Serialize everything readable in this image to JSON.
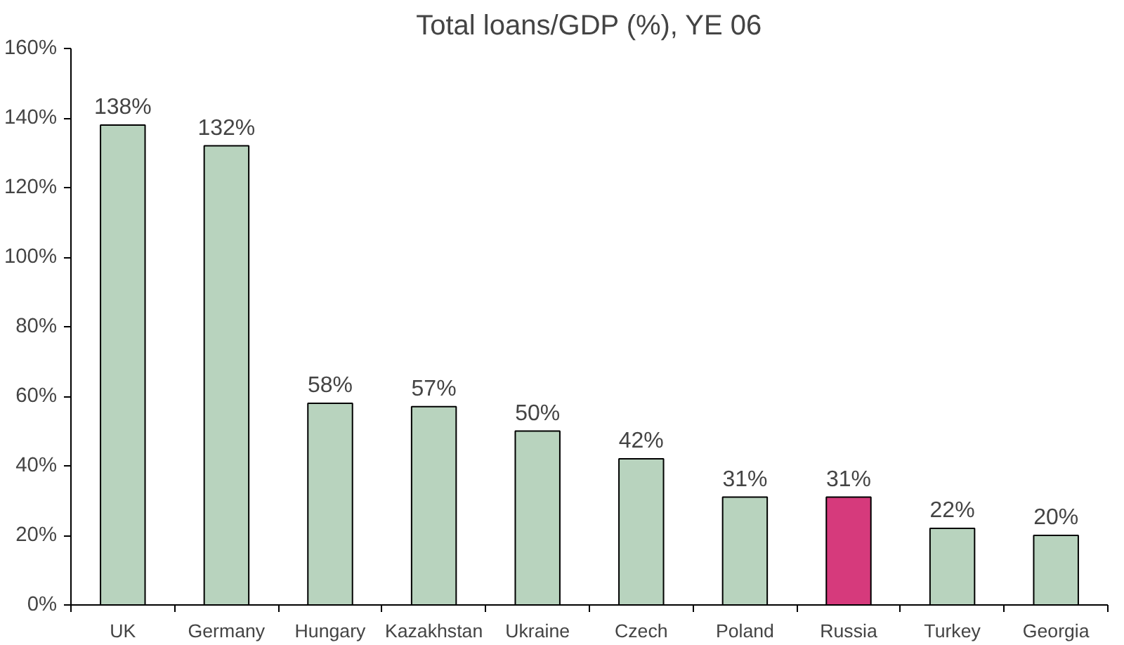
{
  "chart_data": {
    "type": "bar",
    "title": "Total loans/GDP (%), YE 06",
    "categories": [
      "UK",
      "Germany",
      "Hungary",
      "Kazakhstan",
      "Ukraine",
      "Czech",
      "Poland",
      "Russia",
      "Turkey",
      "Georgia"
    ],
    "values": [
      138,
      132,
      58,
      57,
      50,
      42,
      31,
      31,
      22,
      20
    ],
    "colors": [
      "#b8d3be",
      "#b8d3be",
      "#b8d3be",
      "#b8d3be",
      "#b8d3be",
      "#b8d3be",
      "#b8d3be",
      "#d63a7c",
      "#b8d3be",
      "#b8d3be"
    ],
    "value_labels": [
      "138%",
      "132%",
      "58%",
      "57%",
      "50%",
      "42%",
      "31%",
      "31%",
      "22%",
      "20%"
    ],
    "ylim": [
      0,
      160
    ],
    "yticks": [
      {
        "value": 0,
        "label": "0%"
      },
      {
        "value": 20,
        "label": "20%"
      },
      {
        "value": 40,
        "label": "40%"
      },
      {
        "value": 60,
        "label": "60%"
      },
      {
        "value": 80,
        "label": "80%"
      },
      {
        "value": 100,
        "label": "100%"
      },
      {
        "value": 120,
        "label": "120%"
      },
      {
        "value": 140,
        "label": "140%"
      },
      {
        "value": 160,
        "label": "160%"
      }
    ],
    "grid": false
  }
}
